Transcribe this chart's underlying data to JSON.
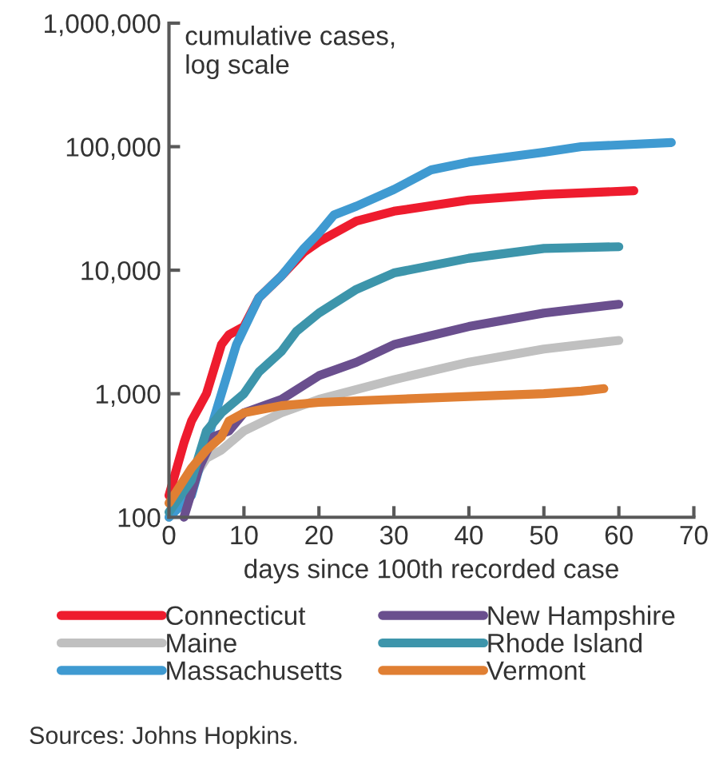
{
  "chart_data": {
    "type": "line",
    "xlabel": "days since 100th recorded case",
    "ylabel": "cumulative cases,\nlog scale",
    "log": true,
    "grid": false,
    "legend": "bottom",
    "line_style": "solid",
    "marker": "none",
    "xlim": [
      0,
      70
    ],
    "xticks": [
      0,
      10,
      20,
      30,
      40,
      50,
      60,
      70
    ],
    "ylim": [
      100,
      1000000
    ],
    "yticks": [
      {
        "value": 100,
        "label": "100"
      },
      {
        "value": 1000,
        "label": "1,000"
      },
      {
        "value": 10000,
        "label": "10,000"
      },
      {
        "value": 100000,
        "label": "100,000"
      },
      {
        "value": 1000000,
        "label": "1,000,000"
      }
    ],
    "series": [
      {
        "name": "Connecticut",
        "color": "#ee1c2e",
        "x": [
          0,
          2,
          3,
          5,
          7,
          8,
          10,
          12,
          15,
          18,
          20,
          25,
          30,
          40,
          50,
          62
        ],
        "values": [
          150,
          400,
          600,
          1000,
          2500,
          3000,
          3500,
          6000,
          9000,
          14000,
          17000,
          25000,
          30000,
          37000,
          41000,
          44000
        ]
      },
      {
        "name": "Maine",
        "color": "#c0c0c0",
        "x": [
          0,
          5,
          7,
          10,
          15,
          20,
          30,
          40,
          50,
          60
        ],
        "values": [
          100,
          300,
          350,
          500,
          700,
          900,
          1300,
          1800,
          2300,
          2700
        ]
      },
      {
        "name": "Massachusetts",
        "color": "#3f9ad1",
        "x": [
          0,
          3,
          5,
          7,
          9,
          12,
          15,
          18,
          20,
          22,
          25,
          30,
          35,
          40,
          50,
          55,
          67
        ],
        "values": [
          100,
          150,
          400,
          1000,
          2500,
          6000,
          9000,
          15000,
          20000,
          28000,
          33000,
          45000,
          65000,
          75000,
          90000,
          100000,
          108000
        ]
      },
      {
        "name": "New Hampshire",
        "color": "#6a4f8e",
        "x": [
          2,
          4,
          6,
          8,
          10,
          15,
          20,
          25,
          30,
          40,
          50,
          60
        ],
        "values": [
          100,
          250,
          450,
          500,
          700,
          900,
          1400,
          1800,
          2500,
          3500,
          4500,
          5300
        ]
      },
      {
        "name": "Rhode Island",
        "color": "#3d95ab",
        "x": [
          0,
          3,
          5,
          7,
          10,
          12,
          15,
          17,
          20,
          25,
          30,
          40,
          50,
          60
        ],
        "values": [
          110,
          200,
          500,
          700,
          1000,
          1500,
          2200,
          3200,
          4500,
          7000,
          9500,
          12500,
          15000,
          15500
        ]
      },
      {
        "name": "Vermont",
        "color": "#e07f33",
        "x": [
          0,
          3,
          5,
          7,
          8,
          10,
          15,
          20,
          30,
          40,
          50,
          55,
          58
        ],
        "values": [
          130,
          250,
          350,
          450,
          600,
          700,
          800,
          850,
          900,
          950,
          1000,
          1050,
          1100
        ]
      }
    ],
    "annotations": [
      "Sources: Johns Hopkins."
    ]
  }
}
